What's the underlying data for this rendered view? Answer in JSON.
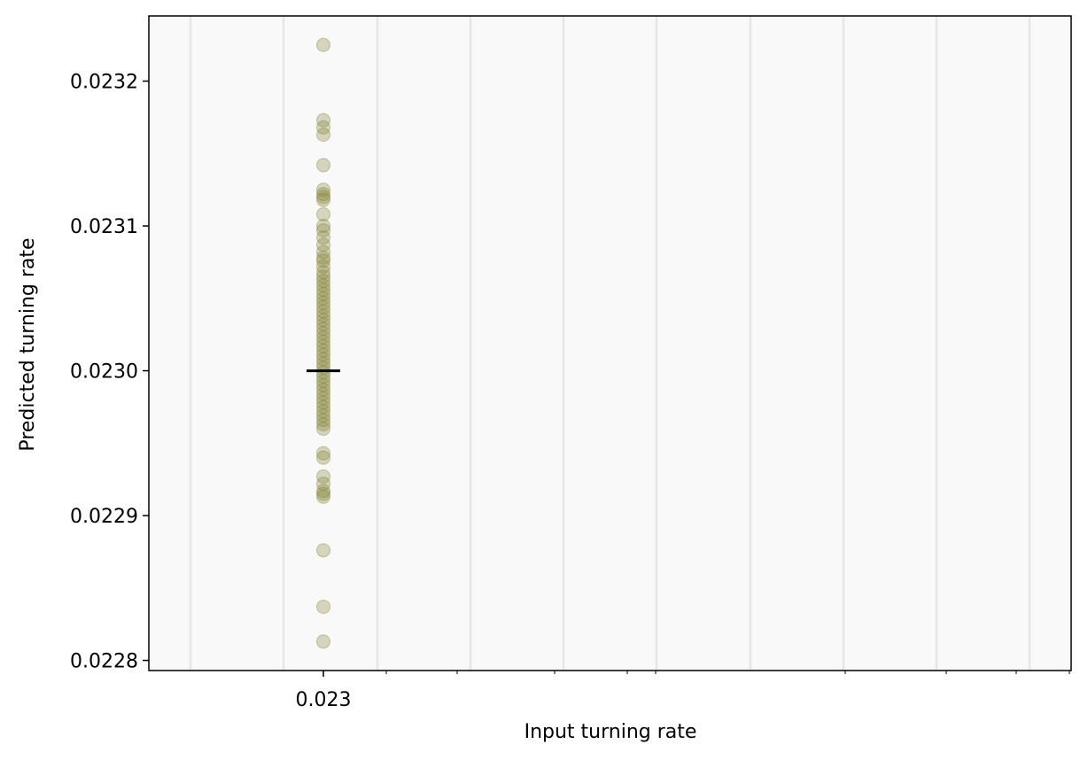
{
  "chart_data": {
    "type": "scatter",
    "title": "",
    "xlabel": "Input turning rate",
    "ylabel": "Predicted turning rate",
    "xscale": "log",
    "x_ticks": [
      {
        "value": 0.023,
        "label": "0.023"
      }
    ],
    "y_ticks": [
      {
        "value": 0.0228,
        "label": "0.0228"
      },
      {
        "value": 0.0229,
        "label": "0.0229"
      },
      {
        "value": 0.023,
        "label": "0.0230"
      },
      {
        "value": 0.0231,
        "label": "0.0231"
      },
      {
        "value": 0.0232,
        "label": "0.0232"
      }
    ],
    "ylim": [
      0.022793,
      0.023245
    ],
    "grid": "vertical",
    "point_color": "#808033",
    "mean_marker_color": "#000000",
    "plot_background": "#f9f9f9",
    "series": [
      {
        "x": 0.023,
        "y": [
          0.023225,
          0.023173,
          0.023168,
          0.023163,
          0.023142,
          0.023125,
          0.023122,
          0.02312,
          0.023118,
          0.023108,
          0.0231,
          0.023097,
          0.023092,
          0.023087,
          0.023082,
          0.023078,
          0.023076,
          0.023072,
          0.023068,
          0.023065,
          0.023062,
          0.023059,
          0.023056,
          0.023053,
          0.02305,
          0.023047,
          0.023044,
          0.023041,
          0.023038,
          0.023035,
          0.023032,
          0.023029,
          0.023026,
          0.023023,
          0.02302,
          0.023017,
          0.023014,
          0.023011,
          0.023008,
          0.023005,
          0.023002,
          0.022999,
          0.022996,
          0.022993,
          0.02299,
          0.022987,
          0.022984,
          0.022981,
          0.022978,
          0.022975,
          0.022972,
          0.022969,
          0.022966,
          0.022963,
          0.02296,
          0.022943,
          0.02294,
          0.022927,
          0.022922,
          0.022917,
          0.022915,
          0.022913,
          0.022876,
          0.022837,
          0.022813
        ]
      }
    ],
    "mean": {
      "x": 0.023,
      "y": 0.023
    }
  }
}
